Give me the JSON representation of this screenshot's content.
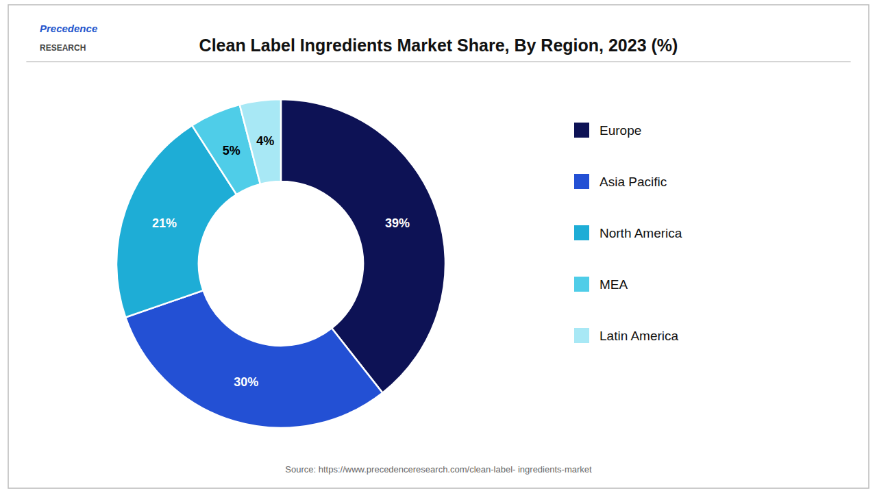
{
  "chart_data": {
    "type": "donut",
    "title": "Clean Label Ingredients Market Share, By Region, 2023 (%)",
    "categories": [
      "Europe",
      "Asia Pacific",
      "North America",
      "MEA",
      "Latin America"
    ],
    "values": [
      39,
      30,
      21,
      5,
      4
    ],
    "value_labels": [
      "39%",
      "30%",
      "21%",
      "5%",
      "4%"
    ],
    "colors": [
      "#0d1255",
      "#2350d4",
      "#1eadd6",
      "#4fcde8",
      "#a8e8f5"
    ],
    "data_labels": true,
    "legend": "right",
    "annotations": [
      "Precedence",
      "RESEARCH",
      "Source: https://www.precedenceresearch.com/clean-label- ingredients-market"
    ]
  }
}
